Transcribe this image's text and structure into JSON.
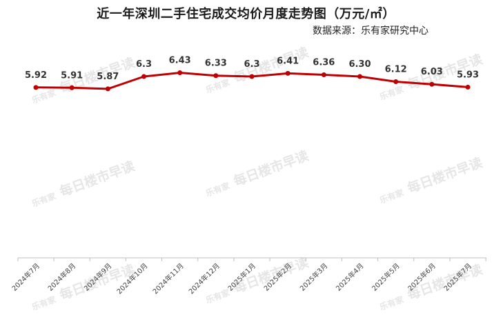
{
  "title": "近一年深圳二手住宅成交均价月度走势图（万元/㎡）",
  "source": "数据来源：乐有家研究中心",
  "watermark": {
    "brand": "乐有家",
    "text": "每日楼市早读"
  },
  "chart_data": {
    "type": "line",
    "title": "近一年深圳二手住宅成交均价月度走势图（万元/㎡）",
    "xlabel": "",
    "ylabel": "",
    "categories": [
      "2024年7月",
      "2024年8月",
      "2024年9月",
      "2024年10月",
      "2024年11月",
      "2024年12月",
      "2025年1月",
      "2025年2月",
      "2025年3月",
      "2025年4月",
      "2025年5月",
      "2025年6月",
      "2025年7月"
    ],
    "values": [
      5.92,
      5.91,
      5.87,
      6.3,
      6.43,
      6.33,
      6.3,
      6.41,
      6.36,
      6.3,
      6.12,
      6.03,
      5.93
    ],
    "value_labels": [
      "5.92",
      "5.91",
      "5.87",
      "6.3",
      "6.43",
      "6.33",
      "6.3",
      "6.41",
      "6.36",
      "6.30",
      "6.12",
      "6.03",
      "5.93"
    ],
    "ylim": [
      0,
      8
    ],
    "grid": false,
    "legend": "none",
    "line_color": "#c00000"
  }
}
